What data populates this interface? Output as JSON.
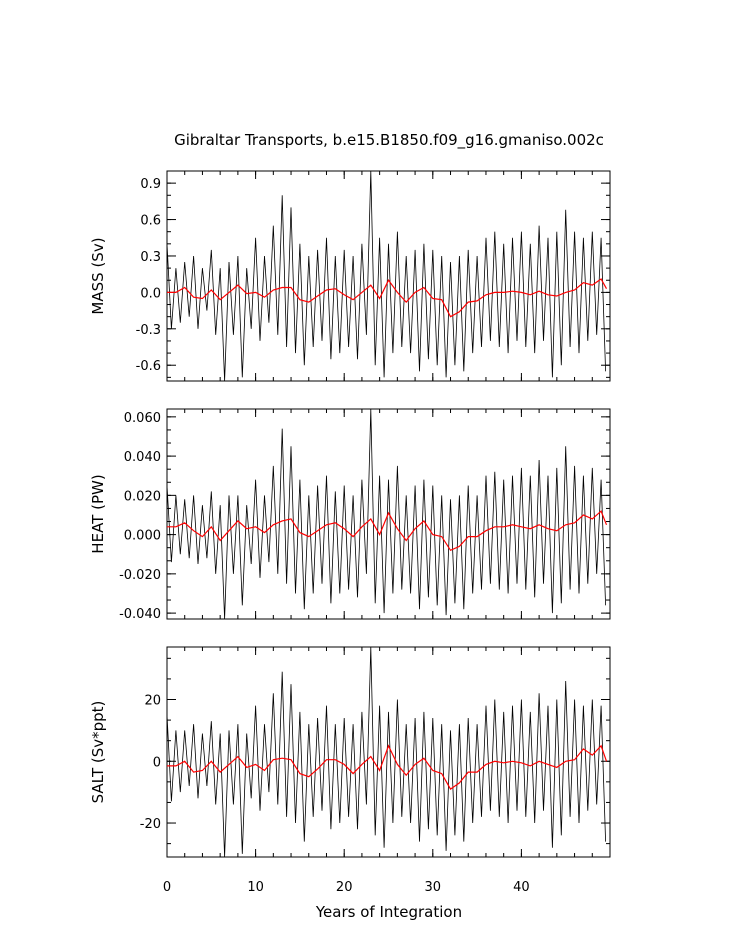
{
  "colors": {
    "raw_series": "#000000",
    "smoothed_series": "#ff0000",
    "axes": "#000000",
    "background": "#ffffff"
  },
  "chart_data": {
    "type": "line",
    "title": "Gibraltar Transports, b.e15.B1850.f09_g16.gmaniso.002c",
    "xlabel": "Years of Integration",
    "xlim": [
      0,
      50
    ],
    "x_ticks": [
      0,
      10,
      20,
      30,
      40
    ],
    "x_tick_labels": [
      "0",
      "10",
      "20",
      "30",
      "40"
    ],
    "grid": false,
    "legend": "none",
    "panels": [
      {
        "name": "mass",
        "ylabel": "MASS (Sv)",
        "ylim": [
          -0.73,
          1.0
        ],
        "y_ticks": [
          0.9,
          0.6,
          0.3,
          0.0,
          -0.3,
          -0.6
        ],
        "y_tick_labels": [
          "0.9",
          "0.6",
          "0.3",
          "0.0",
          "-0.3",
          "-0.6"
        ],
        "raw_series": {
          "x": [
            0,
            0.5,
            1,
            1.5,
            2,
            2.5,
            3,
            3.5,
            4,
            4.5,
            5,
            5.5,
            6,
            6.5,
            7,
            7.5,
            8,
            8.5,
            9,
            9.5,
            10,
            10.5,
            11,
            11.5,
            12,
            12.5,
            13,
            13.5,
            14,
            14.5,
            15,
            15.5,
            16,
            16.5,
            17,
            17.5,
            18,
            18.5,
            19,
            19.5,
            20,
            20.5,
            21,
            21.5,
            22,
            22.5,
            23,
            23.5,
            24,
            24.5,
            25,
            25.5,
            26,
            26.5,
            27,
            27.5,
            28,
            28.5,
            29,
            29.5,
            30,
            30.5,
            31,
            31.5,
            32,
            32.5,
            33,
            33.5,
            34,
            34.5,
            35,
            35.5,
            36,
            36.5,
            37,
            37.5,
            38,
            38.5,
            39,
            39.5,
            40,
            40.5,
            41,
            41.5,
            42,
            42.5,
            43,
            43.5,
            44,
            44.5,
            45,
            45.5,
            46,
            46.5,
            47,
            47.5,
            48,
            48.5,
            49,
            49.5
          ],
          "y": [
            0.4,
            -0.3,
            0.2,
            -0.25,
            0.25,
            -0.2,
            0.3,
            -0.3,
            0.2,
            -0.15,
            0.35,
            -0.35,
            0.2,
            -0.73,
            0.25,
            -0.35,
            0.3,
            -0.7,
            0.2,
            -0.3,
            0.45,
            -0.4,
            0.3,
            -0.25,
            0.55,
            -0.35,
            0.8,
            -0.45,
            0.7,
            -0.5,
            0.4,
            -0.6,
            0.3,
            -0.45,
            0.35,
            -0.4,
            0.45,
            -0.55,
            0.3,
            -0.5,
            0.35,
            -0.45,
            0.3,
            -0.55,
            0.4,
            -0.35,
            1.0,
            -0.6,
            0.45,
            -0.7,
            0.4,
            -0.5,
            0.5,
            -0.45,
            0.3,
            -0.5,
            0.35,
            -0.65,
            0.4,
            -0.55,
            0.35,
            -0.6,
            0.3,
            -0.7,
            0.25,
            -0.6,
            0.3,
            -0.65,
            0.35,
            -0.5,
            0.3,
            -0.45,
            0.45,
            -0.4,
            0.5,
            -0.45,
            0.4,
            -0.5,
            0.45,
            -0.4,
            0.5,
            -0.45,
            0.4,
            -0.5,
            0.55,
            -0.4,
            0.45,
            -0.7,
            0.5,
            -0.6,
            0.68,
            -0.45,
            0.5,
            -0.5,
            0.45,
            -0.4,
            0.5,
            -0.35,
            0.45,
            -0.65
          ]
        },
        "smoothed_series": {
          "x": [
            0,
            1,
            2,
            3,
            4,
            5,
            6,
            7,
            8,
            9,
            10,
            11,
            12,
            13,
            14,
            15,
            16,
            17,
            18,
            19,
            20,
            21,
            22,
            23,
            24,
            25,
            26,
            27,
            28,
            29,
            30,
            31,
            32,
            33,
            34,
            35,
            36,
            37,
            38,
            39,
            40,
            41,
            42,
            43,
            44,
            45,
            46,
            47,
            48,
            49,
            49.6
          ],
          "y": [
            0.0,
            0.0,
            0.04,
            -0.04,
            -0.05,
            0.02,
            -0.06,
            0.0,
            0.06,
            -0.01,
            0.0,
            -0.04,
            0.02,
            0.04,
            0.04,
            -0.06,
            -0.08,
            -0.03,
            0.02,
            0.03,
            -0.02,
            -0.06,
            0.0,
            0.06,
            -0.05,
            0.1,
            0.0,
            -0.08,
            0.0,
            0.04,
            -0.05,
            -0.06,
            -0.2,
            -0.16,
            -0.08,
            -0.07,
            -0.02,
            0.0,
            0.0,
            0.01,
            0.0,
            -0.02,
            0.01,
            -0.02,
            -0.03,
            0.0,
            0.02,
            0.08,
            0.06,
            0.11,
            0.03
          ]
        }
      },
      {
        "name": "heat",
        "ylabel": "HEAT (PW)",
        "ylim": [
          -0.043,
          0.064
        ],
        "y_ticks": [
          0.06,
          0.04,
          0.02,
          0.0,
          -0.02,
          -0.04
        ],
        "y_tick_labels": [
          "0.060",
          "0.040",
          "0.020",
          "0.000",
          "-0.020",
          "-0.040"
        ],
        "raw_series": {
          "x": [
            0,
            0.5,
            1,
            1.5,
            2,
            2.5,
            3,
            3.5,
            4,
            4.5,
            5,
            5.5,
            6,
            6.5,
            7,
            7.5,
            8,
            8.5,
            9,
            9.5,
            10,
            10.5,
            11,
            11.5,
            12,
            12.5,
            13,
            13.5,
            14,
            14.5,
            15,
            15.5,
            16,
            16.5,
            17,
            17.5,
            18,
            18.5,
            19,
            19.5,
            20,
            20.5,
            21,
            21.5,
            22,
            22.5,
            23,
            23.5,
            24,
            24.5,
            25,
            25.5,
            26,
            26.5,
            27,
            27.5,
            28,
            28.5,
            29,
            29.5,
            30,
            30.5,
            31,
            31.5,
            32,
            32.5,
            33,
            33.5,
            34,
            34.5,
            35,
            35.5,
            36,
            36.5,
            37,
            37.5,
            38,
            38.5,
            39,
            39.5,
            40,
            40.5,
            41,
            41.5,
            42,
            42.5,
            43,
            43.5,
            44,
            44.5,
            45,
            45.5,
            46,
            46.5,
            47,
            47.5,
            48,
            48.5,
            49,
            49.5
          ],
          "y": [
            0.025,
            -0.014,
            0.02,
            -0.01,
            0.018,
            -0.012,
            0.02,
            -0.015,
            0.015,
            -0.012,
            0.022,
            -0.02,
            0.015,
            -0.043,
            0.02,
            -0.02,
            0.02,
            -0.036,
            0.015,
            -0.015,
            0.028,
            -0.022,
            0.02,
            -0.014,
            0.035,
            -0.02,
            0.054,
            -0.025,
            0.045,
            -0.03,
            0.028,
            -0.038,
            0.02,
            -0.03,
            0.025,
            -0.025,
            0.03,
            -0.035,
            0.022,
            -0.03,
            0.025,
            -0.028,
            0.02,
            -0.032,
            0.028,
            -0.02,
            0.064,
            -0.035,
            0.03,
            -0.04,
            0.028,
            -0.03,
            0.035,
            -0.028,
            0.02,
            -0.03,
            0.025,
            -0.038,
            0.028,
            -0.032,
            0.025,
            -0.036,
            0.02,
            -0.041,
            0.018,
            -0.035,
            0.02,
            -0.038,
            0.025,
            -0.03,
            0.02,
            -0.028,
            0.03,
            -0.025,
            0.032,
            -0.028,
            0.028,
            -0.03,
            0.03,
            -0.025,
            0.034,
            -0.028,
            0.03,
            -0.032,
            0.038,
            -0.025,
            0.03,
            -0.04,
            0.034,
            -0.035,
            0.045,
            -0.028,
            0.035,
            -0.03,
            0.03,
            -0.025,
            0.034,
            -0.02,
            0.028,
            -0.036
          ]
        },
        "smoothed_series": {
          "x": [
            0,
            1,
            2,
            3,
            4,
            5,
            6,
            7,
            8,
            9,
            10,
            11,
            12,
            13,
            14,
            15,
            16,
            17,
            18,
            19,
            20,
            21,
            22,
            23,
            24,
            25,
            26,
            27,
            28,
            29,
            30,
            31,
            32,
            33,
            34,
            35,
            36,
            37,
            38,
            39,
            40,
            41,
            42,
            43,
            44,
            45,
            46,
            47,
            48,
            49,
            49.6
          ],
          "y": [
            0.004,
            0.004,
            0.006,
            0.002,
            -0.001,
            0.004,
            -0.003,
            0.002,
            0.007,
            0.003,
            0.004,
            0.001,
            0.005,
            0.007,
            0.008,
            0.001,
            -0.001,
            0.002,
            0.005,
            0.006,
            0.003,
            -0.001,
            0.004,
            0.008,
            0.0,
            0.011,
            0.003,
            -0.003,
            0.003,
            0.007,
            0.0,
            -0.001,
            -0.008,
            -0.006,
            -0.001,
            -0.001,
            0.002,
            0.004,
            0.004,
            0.005,
            0.004,
            0.003,
            0.005,
            0.003,
            0.002,
            0.005,
            0.006,
            0.01,
            0.008,
            0.012,
            0.005
          ]
        }
      },
      {
        "name": "salt",
        "ylabel": "SALT (Sv*ppt)",
        "ylim": [
          -31,
          37
        ],
        "y_ticks": [
          20,
          0,
          -20
        ],
        "y_tick_labels": [
          "20",
          "0",
          "-20"
        ],
        "raw_series": {
          "x": [
            0,
            0.5,
            1,
            1.5,
            2,
            2.5,
            3,
            3.5,
            4,
            4.5,
            5,
            5.5,
            6,
            6.5,
            7,
            7.5,
            8,
            8.5,
            9,
            9.5,
            10,
            10.5,
            11,
            11.5,
            12,
            12.5,
            13,
            13.5,
            14,
            14.5,
            15,
            15.5,
            16,
            16.5,
            17,
            17.5,
            18,
            18.5,
            19,
            19.5,
            20,
            20.5,
            21,
            21.5,
            22,
            22.5,
            23,
            23.5,
            24,
            24.5,
            25,
            25.5,
            26,
            26.5,
            27,
            27.5,
            28,
            28.5,
            29,
            29.5,
            30,
            30.5,
            31,
            31.5,
            32,
            32.5,
            33,
            33.5,
            34,
            34.5,
            35,
            35.5,
            36,
            36.5,
            37,
            37.5,
            38,
            38.5,
            39,
            39.5,
            40,
            40.5,
            41,
            41.5,
            42,
            42.5,
            43,
            43.5,
            44,
            44.5,
            45,
            45.5,
            46,
            46.5,
            47,
            47.5,
            48,
            48.5,
            49,
            49.5
          ],
          "y": [
            15,
            -13,
            10,
            -10,
            10,
            -8,
            12,
            -12,
            9,
            -8,
            13,
            -14,
            9,
            -31,
            10,
            -14,
            12,
            -30,
            9,
            -12,
            18,
            -16,
            12,
            -10,
            22,
            -14,
            29,
            -18,
            25,
            -20,
            16,
            -26,
            12,
            -18,
            14,
            -16,
            18,
            -22,
            12,
            -20,
            14,
            -18,
            12,
            -22,
            16,
            -14,
            37,
            -24,
            18,
            -28,
            16,
            -20,
            20,
            -18,
            12,
            -20,
            14,
            -26,
            16,
            -22,
            14,
            -24,
            12,
            -29,
            10,
            -24,
            12,
            -26,
            14,
            -20,
            12,
            -18,
            18,
            -16,
            20,
            -18,
            16,
            -20,
            18,
            -16,
            20,
            -18,
            16,
            -20,
            22,
            -16,
            18,
            -28,
            20,
            -24,
            26,
            -18,
            20,
            -20,
            18,
            -16,
            20,
            -14,
            18,
            -26
          ]
        },
        "smoothed_series": {
          "x": [
            0,
            1,
            2,
            3,
            4,
            5,
            6,
            7,
            8,
            9,
            10,
            11,
            12,
            13,
            14,
            15,
            16,
            17,
            18,
            19,
            20,
            21,
            22,
            23,
            24,
            25,
            26,
            27,
            28,
            29,
            30,
            31,
            32,
            33,
            34,
            35,
            36,
            37,
            38,
            39,
            40,
            41,
            42,
            43,
            44,
            45,
            46,
            47,
            48,
            49,
            49.6
          ],
          "y": [
            -1.5,
            -1.5,
            0,
            -3.5,
            -3,
            0,
            -3.5,
            -1,
            1.5,
            -2,
            -1,
            -3,
            0.5,
            1,
            0.5,
            -4,
            -5,
            -2.5,
            0.5,
            0.5,
            -1,
            -4,
            -1,
            1.5,
            -3,
            5,
            -1,
            -4.5,
            -1,
            1,
            -3,
            -4,
            -9,
            -7,
            -3.5,
            -3.5,
            -1,
            0,
            -0.5,
            0,
            -0.5,
            -1.5,
            0,
            -1,
            -2,
            0,
            0.5,
            4,
            2,
            5,
            0
          ]
        }
      }
    ]
  }
}
